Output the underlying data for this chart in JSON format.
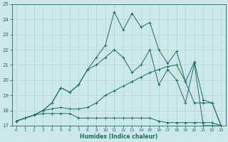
{
  "xlabel": "Humidex (Indice chaleur)",
  "ylabel": "",
  "xlim": [
    -0.5,
    23.5
  ],
  "ylim": [
    17,
    25
  ],
  "xticks": [
    0,
    1,
    2,
    3,
    4,
    5,
    6,
    7,
    8,
    9,
    10,
    11,
    12,
    13,
    14,
    15,
    16,
    17,
    18,
    19,
    20,
    21,
    22,
    23
  ],
  "yticks": [
    17,
    18,
    19,
    20,
    21,
    22,
    23,
    24,
    25
  ],
  "bg_color": "#cde8e8",
  "line_color": "#1a6b6b",
  "grid_color": "#afd4d4",
  "lines": [
    {
      "x": [
        0,
        1,
        2,
        3,
        4,
        5,
        6,
        7,
        8,
        9,
        10,
        11,
        12,
        13,
        14,
        15,
        16,
        17,
        18,
        19,
        20,
        21,
        22,
        23
      ],
      "y": [
        17.3,
        17.5,
        17.7,
        17.8,
        17.8,
        17.8,
        17.8,
        17.5,
        17.5,
        17.5,
        17.5,
        17.5,
        17.5,
        17.5,
        17.5,
        17.5,
        17.3,
        17.2,
        17.2,
        17.2,
        17.2,
        17.2,
        17.2,
        17.0
      ]
    },
    {
      "x": [
        0,
        1,
        2,
        3,
        4,
        5,
        6,
        7,
        8,
        9,
        10,
        11,
        12,
        13,
        14,
        15,
        16,
        17,
        18,
        19,
        20,
        21,
        22,
        23
      ],
      "y": [
        17.3,
        17.5,
        17.7,
        18.0,
        18.1,
        18.2,
        18.1,
        18.1,
        18.2,
        18.5,
        19.0,
        19.3,
        19.6,
        19.9,
        20.2,
        20.5,
        20.7,
        20.9,
        21.0,
        19.9,
        18.5,
        18.5,
        18.5,
        17.0
      ]
    },
    {
      "x": [
        0,
        1,
        2,
        3,
        4,
        5,
        6,
        7,
        8,
        9,
        10,
        11,
        12,
        13,
        14,
        15,
        16,
        17,
        18,
        19,
        20,
        21,
        22,
        23
      ],
      "y": [
        17.3,
        17.5,
        17.7,
        18.0,
        18.5,
        19.5,
        19.2,
        19.7,
        20.7,
        21.0,
        21.5,
        22.0,
        21.5,
        20.5,
        21.0,
        22.0,
        19.7,
        20.7,
        20.0,
        18.5,
        21.1,
        17.0,
        17.0,
        17.0
      ]
    },
    {
      "x": [
        0,
        1,
        2,
        3,
        4,
        5,
        6,
        7,
        8,
        9,
        10,
        11,
        12,
        13,
        14,
        15,
        16,
        17,
        18,
        19,
        20,
        21,
        22,
        23
      ],
      "y": [
        17.3,
        17.5,
        17.7,
        18.0,
        18.5,
        19.5,
        19.2,
        19.7,
        20.7,
        21.5,
        22.3,
        24.5,
        23.3,
        24.4,
        23.5,
        23.8,
        22.0,
        21.1,
        21.9,
        19.9,
        21.2,
        18.7,
        18.5,
        17.0
      ]
    }
  ]
}
